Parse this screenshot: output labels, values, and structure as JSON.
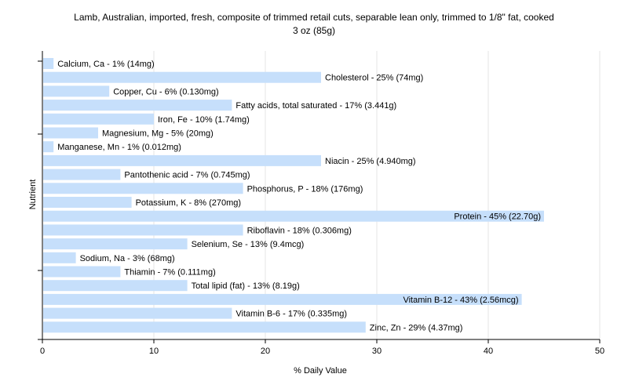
{
  "chart_data": {
    "type": "bar",
    "orientation": "horizontal",
    "title_line1": "Lamb, Australian, imported, fresh, composite of trimmed retail cuts, separable lean only, trimmed to 1/8\" fat, cooked",
    "title_line2": "3 oz (85g)",
    "xlabel": "% Daily Value",
    "ylabel": "Nutrient",
    "xlim": [
      0,
      50
    ],
    "xticks": [
      "0",
      "10",
      "20",
      "30",
      "40",
      "50"
    ],
    "grid": true,
    "bar_color": "#c6dffb",
    "categories": [
      "Calcium, Ca",
      "Cholesterol",
      "Copper, Cu",
      "Fatty acids, total saturated",
      "Iron, Fe",
      "Magnesium, Mg",
      "Manganese, Mn",
      "Niacin",
      "Pantothenic acid",
      "Phosphorus, P",
      "Potassium, K",
      "Protein",
      "Riboflavin",
      "Selenium, Se",
      "Sodium, Na",
      "Thiamin",
      "Total lipid (fat)",
      "Vitamin B-12",
      "Vitamin B-6",
      "Zinc, Zn"
    ],
    "values": [
      1,
      25,
      6,
      17,
      10,
      5,
      1,
      25,
      7,
      18,
      8,
      45,
      18,
      13,
      3,
      7,
      13,
      43,
      17,
      29
    ],
    "labels": [
      "Calcium, Ca - 1% (14mg)",
      "Cholesterol - 25% (74mg)",
      "Copper, Cu - 6% (0.130mg)",
      "Fatty acids, total saturated - 17% (3.441g)",
      "Iron, Fe - 10% (1.74mg)",
      "Magnesium, Mg - 5% (20mg)",
      "Manganese, Mn - 1% (0.012mg)",
      "Niacin - 25% (4.940mg)",
      "Pantothenic acid - 7% (0.745mg)",
      "Phosphorus, P - 18% (176mg)",
      "Potassium, K - 8% (270mg)",
      "Protein - 45% (22.70g)",
      "Riboflavin - 18% (0.306mg)",
      "Selenium, Se - 13% (9.4mcg)",
      "Sodium, Na - 3% (68mg)",
      "Thiamin - 7% (0.111mg)",
      "Total lipid (fat) - 13% (8.19g)",
      "Vitamin B-12 - 43% (2.56mcg)",
      "Vitamin B-6 - 17% (0.335mg)",
      "Zinc, Zn - 29% (4.37mg)"
    ]
  }
}
